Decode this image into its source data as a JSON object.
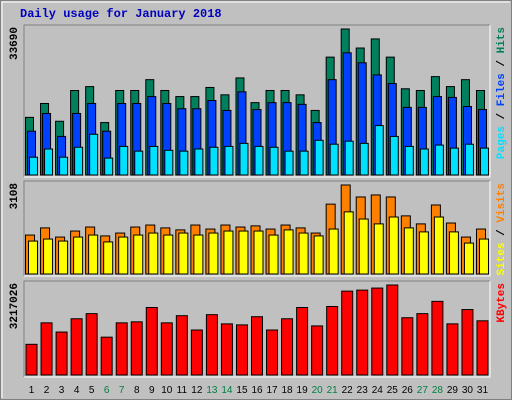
{
  "chart_data": [
    {
      "type": "bar",
      "title": "Daily usage for January 2018",
      "ylim": [
        0,
        33690
      ],
      "yticks": [
        33690
      ],
      "legend_separator": " / ",
      "series": [
        {
          "name": "Hits",
          "color": "#00805c",
          "values": [
            13300,
            16500,
            12400,
            19500,
            20400,
            12100,
            19500,
            19500,
            22000,
            19500,
            18100,
            18100,
            20200,
            18500,
            22400,
            16700,
            19500,
            19500,
            18500,
            14900,
            27200,
            33690,
            29300,
            31400,
            27200,
            19900,
            19500,
            22700,
            20400,
            22000,
            19500
          ]
        },
        {
          "name": "Files",
          "color": "#0040ff",
          "values": [
            10100,
            14200,
            8900,
            14200,
            16500,
            10100,
            16500,
            16500,
            18100,
            16500,
            15300,
            15300,
            17200,
            14900,
            19200,
            15100,
            16700,
            16700,
            16300,
            12100,
            22000,
            28200,
            25900,
            23100,
            21100,
            15600,
            15600,
            18100,
            17900,
            15800,
            15100
          ]
        },
        {
          "name": "Pages",
          "color": "#00e0ff",
          "values": [
            4100,
            6000,
            4100,
            6400,
            9400,
            3900,
            6600,
            5500,
            6600,
            5700,
            5500,
            6000,
            6400,
            6600,
            7300,
            6600,
            6400,
            5500,
            5500,
            8000,
            7100,
            7800,
            7300,
            11400,
            8900,
            6600,
            6000,
            6900,
            6200,
            7100,
            6200
          ]
        }
      ]
    },
    {
      "type": "bar",
      "ylim": [
        0,
        3108
      ],
      "yticks": [
        3108
      ],
      "legend_separator": " / ",
      "series": [
        {
          "name": "Visits",
          "color": "#ff8000",
          "values": [
            1360,
            1610,
            1290,
            1500,
            1640,
            1330,
            1430,
            1640,
            1710,
            1610,
            1540,
            1710,
            1570,
            1710,
            1640,
            1680,
            1570,
            1710,
            1610,
            1430,
            2440,
            3108,
            2690,
            2760,
            2690,
            2030,
            1750,
            2410,
            1780,
            1290,
            1570
          ]
        },
        {
          "name": "Sites",
          "color": "#ffff00",
          "values": [
            1150,
            1220,
            1150,
            1290,
            1360,
            1120,
            1290,
            1360,
            1430,
            1360,
            1430,
            1360,
            1430,
            1500,
            1500,
            1500,
            1360,
            1540,
            1430,
            1330,
            1570,
            2170,
            1920,
            1750,
            1990,
            1610,
            1470,
            1990,
            1470,
            1080,
            1220
          ]
        }
      ]
    },
    {
      "type": "bar",
      "ylim": [
        0,
        3217026
      ],
      "yticks": [
        3217026
      ],
      "categories": [
        "1",
        "2",
        "3",
        "4",
        "5",
        "6",
        "7",
        "8",
        "9",
        "10",
        "11",
        "12",
        "13",
        "14",
        "15",
        "16",
        "17",
        "18",
        "19",
        "20",
        "21",
        "22",
        "23",
        "24",
        "25",
        "26",
        "27",
        "28",
        "29",
        "30",
        "31"
      ],
      "category_colors": [
        "#000000",
        "#000000",
        "#000000",
        "#000000",
        "#000000",
        "#008040",
        "#008040",
        "#000000",
        "#000000",
        "#000000",
        "#000000",
        "#000000",
        "#008040",
        "#008040",
        "#000000",
        "#000000",
        "#000000",
        "#000000",
        "#000000",
        "#008040",
        "#008040",
        "#000000",
        "#000000",
        "#000000",
        "#000000",
        "#000000",
        "#008040",
        "#008040",
        "#000000",
        "#000000",
        "#000000"
      ],
      "series": [
        {
          "name": "KBytes",
          "color": "#ff0000",
          "values": [
            1096700,
            1864400,
            1535400,
            2010600,
            2193400,
            1352600,
            1864400,
            1901000,
            2412800,
            1864400,
            2120300,
            1608500,
            2156900,
            1827900,
            1791300,
            2083700,
            1608500,
            2010600,
            2412800,
            1754700,
            2449300,
            2997700,
            3034200,
            3107300,
            3217026,
            2047200,
            2193400,
            2632100,
            1827900,
            2339600,
            1937500
          ]
        }
      ]
    }
  ]
}
